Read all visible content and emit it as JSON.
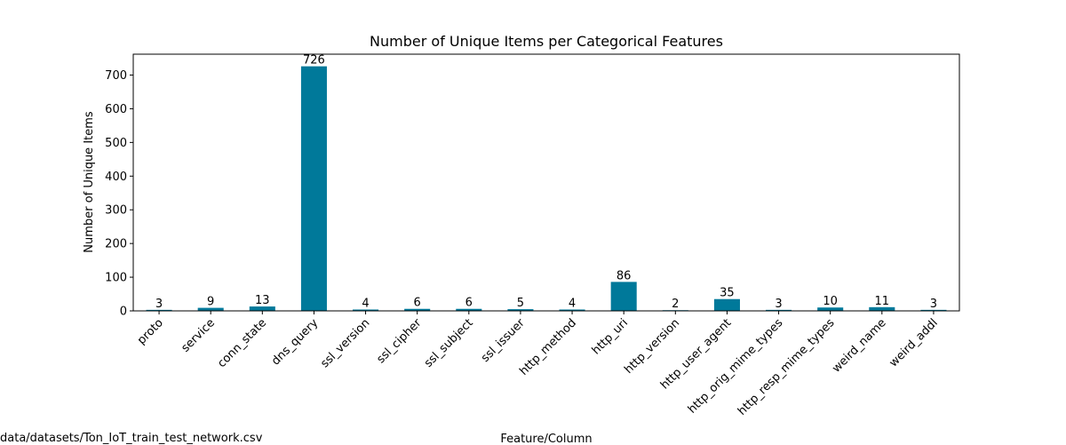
{
  "chart_data": {
    "type": "bar",
    "title": "Number of Unique Items per Categorical Features",
    "xlabel": "Feature/Column",
    "ylabel": "Number of Unique Items",
    "categories": [
      "proto",
      "service",
      "conn_state",
      "dns_query",
      "ssl_version",
      "ssl_cipher",
      "ssl_subject",
      "ssl_issuer",
      "http_method",
      "http_uri",
      "http_version",
      "http_user_agent",
      "http_orig_mime_types",
      "http_resp_mime_types",
      "weird_name",
      "weird_addl"
    ],
    "values": [
      3,
      9,
      13,
      726,
      4,
      6,
      6,
      5,
      4,
      86,
      2,
      35,
      3,
      10,
      11,
      3
    ],
    "ylim": [
      0,
      762
    ],
    "yticks": [
      0,
      100,
      200,
      300,
      400,
      500,
      600,
      700
    ],
    "bar_color": "#00799a",
    "grid": false,
    "legend": "none"
  },
  "footnote": "data/datasets/Ton_IoT_train_test_network.csv"
}
